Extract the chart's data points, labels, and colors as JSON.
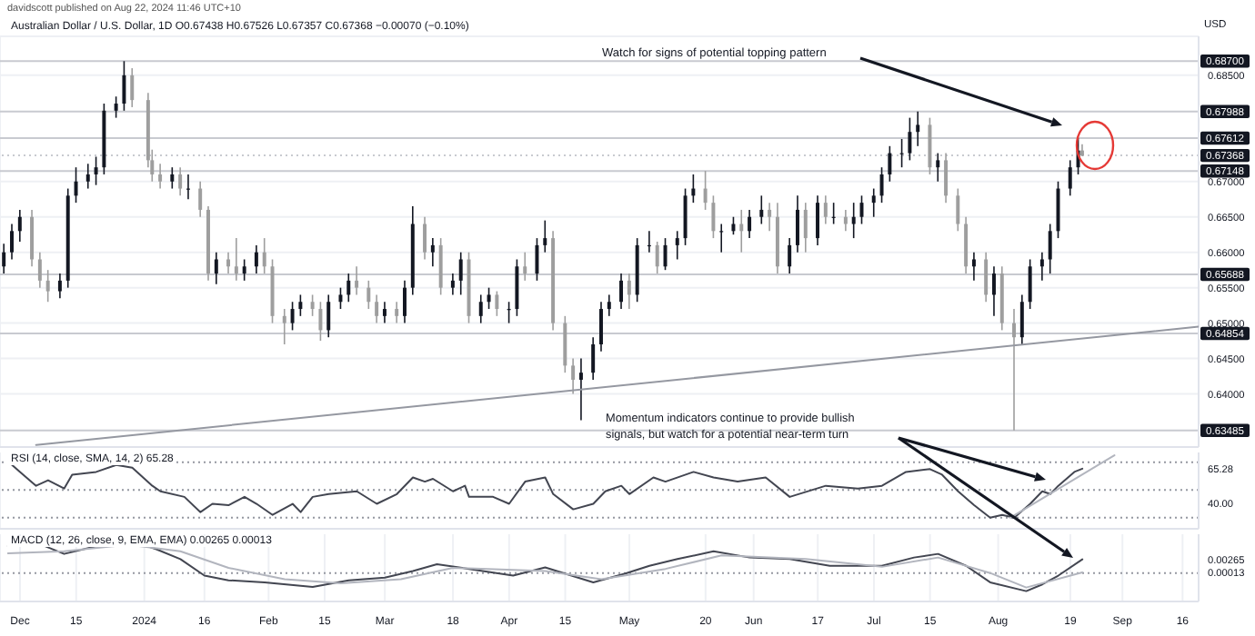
{
  "chart_data": [
    {
      "type": "candlestick",
      "title": "Australian Dollar / U.S. Dollar, 1D O0.67438 H0.67526 L0.67357 C0.67368 −0.00070 (−0.10%)",
      "ylabel": "USD",
      "annotations": [
        "davidscott published on Aug 22, 2024 11:46 UTC+10",
        "Watch for signs of potential topping pattern",
        "Momentum indicators continue to provide bullish signals, but watch for a potential near-term turn"
      ],
      "x": [
        "2023-11-27",
        "2023-11-29",
        "2023-12-01",
        "2023-12-04",
        "2023-12-06",
        "2023-12-08",
        "2023-12-11",
        "2023-12-13",
        "2023-12-15",
        "2023-12-18",
        "2023-12-20",
        "2023-12-22",
        "2023-12-25",
        "2023-12-27",
        "2023-12-29",
        "2024-01-02",
        "2024-01-03",
        "2024-01-05",
        "2024-01-08",
        "2024-01-10",
        "2024-01-12",
        "2024-01-15",
        "2024-01-17",
        "2024-01-19",
        "2024-01-22",
        "2024-01-24",
        "2024-01-26",
        "2024-01-29",
        "2024-01-31",
        "2024-02-02",
        "2024-02-05",
        "2024-02-07",
        "2024-02-09",
        "2024-02-12",
        "2024-02-14",
        "2024-02-16",
        "2024-02-19",
        "2024-02-21",
        "2024-02-23",
        "2024-02-26",
        "2024-02-28",
        "2024-03-01",
        "2024-03-04",
        "2024-03-06",
        "2024-03-08",
        "2024-03-11",
        "2024-03-13",
        "2024-03-15",
        "2024-03-18",
        "2024-03-20",
        "2024-03-22",
        "2024-03-25",
        "2024-03-27",
        "2024-03-29",
        "2024-04-01",
        "2024-04-03",
        "2024-04-05",
        "2024-04-08",
        "2024-04-10",
        "2024-04-12",
        "2024-04-15",
        "2024-04-17",
        "2024-04-19",
        "2024-04-22",
        "2024-04-24",
        "2024-04-26",
        "2024-04-29",
        "2024-05-01",
        "2024-05-03",
        "2024-05-06",
        "2024-05-08",
        "2024-05-10",
        "2024-05-13",
        "2024-05-15",
        "2024-05-17",
        "2024-05-20",
        "2024-05-22",
        "2024-05-24",
        "2024-05-27",
        "2024-05-29",
        "2024-05-31",
        "2024-06-03",
        "2024-06-05",
        "2024-06-07",
        "2024-06-10",
        "2024-06-12",
        "2024-06-14",
        "2024-06-17",
        "2024-06-19",
        "2024-06-21",
        "2024-06-24",
        "2024-06-26",
        "2024-06-28",
        "2024-07-01",
        "2024-07-03",
        "2024-07-05",
        "2024-07-08",
        "2024-07-10",
        "2024-07-12",
        "2024-07-15",
        "2024-07-17",
        "2024-07-19",
        "2024-07-22",
        "2024-07-24",
        "2024-07-26",
        "2024-07-29",
        "2024-07-31",
        "2024-08-02",
        "2024-08-05",
        "2024-08-07",
        "2024-08-09",
        "2024-08-12",
        "2024-08-14",
        "2024-08-16",
        "2024-08-19",
        "2024-08-21",
        "2024-08-22"
      ],
      "ohlc": [
        [
          0.658,
          0.6612,
          0.657,
          0.66
        ],
        [
          0.66,
          0.664,
          0.659,
          0.663
        ],
        [
          0.663,
          0.666,
          0.6615,
          0.665
        ],
        [
          0.665,
          0.666,
          0.658,
          0.659
        ],
        [
          0.659,
          0.66,
          0.655,
          0.656
        ],
        [
          0.656,
          0.6575,
          0.653,
          0.6545
        ],
        [
          0.6545,
          0.657,
          0.6535,
          0.656
        ],
        [
          0.656,
          0.669,
          0.655,
          0.668
        ],
        [
          0.668,
          0.672,
          0.667,
          0.67
        ],
        [
          0.67,
          0.6725,
          0.669,
          0.671
        ],
        [
          0.671,
          0.6735,
          0.6695,
          0.672
        ],
        [
          0.672,
          0.681,
          0.671,
          0.68
        ],
        [
          0.68,
          0.682,
          0.679,
          0.681
        ],
        [
          0.681,
          0.687,
          0.68,
          0.685
        ],
        [
          0.685,
          0.686,
          0.6805,
          0.6815
        ],
        [
          0.6815,
          0.6825,
          0.672,
          0.673
        ],
        [
          0.673,
          0.6745,
          0.67,
          0.671
        ],
        [
          0.671,
          0.6725,
          0.669,
          0.67
        ],
        [
          0.67,
          0.672,
          0.669,
          0.671
        ],
        [
          0.671,
          0.672,
          0.668,
          0.669
        ],
        [
          0.669,
          0.671,
          0.6675,
          0.669
        ],
        [
          0.669,
          0.67,
          0.665,
          0.666
        ],
        [
          0.666,
          0.6665,
          0.656,
          0.657
        ],
        [
          0.657,
          0.66,
          0.6555,
          0.659
        ],
        [
          0.659,
          0.66,
          0.657,
          0.658
        ],
        [
          0.658,
          0.662,
          0.656,
          0.657
        ],
        [
          0.657,
          0.659,
          0.656,
          0.658
        ],
        [
          0.658,
          0.661,
          0.657,
          0.66
        ],
        [
          0.66,
          0.662,
          0.657,
          0.658
        ],
        [
          0.658,
          0.659,
          0.65,
          0.651
        ],
        [
          0.651,
          0.652,
          0.647,
          0.65
        ],
        [
          0.65,
          0.653,
          0.649,
          0.652
        ],
        [
          0.652,
          0.654,
          0.651,
          0.653
        ],
        [
          0.653,
          0.654,
          0.651,
          0.652
        ],
        [
          0.652,
          0.653,
          0.6475,
          0.649
        ],
        [
          0.649,
          0.654,
          0.648,
          0.653
        ],
        [
          0.653,
          0.655,
          0.652,
          0.654
        ],
        [
          0.654,
          0.657,
          0.653,
          0.656
        ],
        [
          0.656,
          0.658,
          0.654,
          0.655
        ],
        [
          0.655,
          0.656,
          0.652,
          0.653
        ],
        [
          0.653,
          0.654,
          0.65,
          0.651
        ],
        [
          0.651,
          0.653,
          0.65,
          0.652
        ],
        [
          0.652,
          0.653,
          0.65,
          0.651
        ],
        [
          0.651,
          0.656,
          0.65,
          0.655
        ],
        [
          0.655,
          0.6665,
          0.654,
          0.664
        ],
        [
          0.664,
          0.665,
          0.659,
          0.66
        ],
        [
          0.66,
          0.662,
          0.658,
          0.661
        ],
        [
          0.661,
          0.662,
          0.654,
          0.655
        ],
        [
          0.655,
          0.657,
          0.654,
          0.656
        ],
        [
          0.656,
          0.66,
          0.654,
          0.659
        ],
        [
          0.659,
          0.66,
          0.65,
          0.651
        ],
        [
          0.651,
          0.654,
          0.65,
          0.653
        ],
        [
          0.653,
          0.655,
          0.652,
          0.654
        ],
        [
          0.654,
          0.6545,
          0.651,
          0.652
        ],
        [
          0.652,
          0.653,
          0.65,
          0.652
        ],
        [
          0.652,
          0.659,
          0.651,
          0.658
        ],
        [
          0.658,
          0.66,
          0.656,
          0.657
        ],
        [
          0.657,
          0.662,
          0.656,
          0.661
        ],
        [
          0.661,
          0.6645,
          0.66,
          0.662
        ],
        [
          0.662,
          0.663,
          0.649,
          0.65
        ],
        [
          0.65,
          0.651,
          0.643,
          0.644
        ],
        [
          0.644,
          0.645,
          0.64,
          0.642
        ],
        [
          0.642,
          0.645,
          0.6363,
          0.643
        ],
        [
          0.643,
          0.648,
          0.642,
          0.647
        ],
        [
          0.647,
          0.653,
          0.646,
          0.652
        ],
        [
          0.652,
          0.654,
          0.651,
          0.653
        ],
        [
          0.653,
          0.657,
          0.652,
          0.656
        ],
        [
          0.656,
          0.657,
          0.652,
          0.654
        ],
        [
          0.654,
          0.662,
          0.653,
          0.661
        ],
        [
          0.661,
          0.663,
          0.66,
          0.661
        ],
        [
          0.661,
          0.6615,
          0.657,
          0.658
        ],
        [
          0.658,
          0.662,
          0.6575,
          0.661
        ],
        [
          0.661,
          0.663,
          0.659,
          0.662
        ],
        [
          0.662,
          0.669,
          0.661,
          0.668
        ],
        [
          0.668,
          0.671,
          0.667,
          0.669
        ],
        [
          0.669,
          0.6715,
          0.666,
          0.667
        ],
        [
          0.667,
          0.668,
          0.662,
          0.663
        ],
        [
          0.663,
          0.664,
          0.66,
          0.663
        ],
        [
          0.663,
          0.665,
          0.6625,
          0.664
        ],
        [
          0.664,
          0.666,
          0.66,
          0.663
        ],
        [
          0.663,
          0.666,
          0.662,
          0.665
        ],
        [
          0.665,
          0.668,
          0.664,
          0.666
        ],
        [
          0.666,
          0.667,
          0.663,
          0.665
        ],
        [
          0.665,
          0.667,
          0.657,
          0.658
        ],
        [
          0.658,
          0.662,
          0.657,
          0.661
        ],
        [
          0.661,
          0.668,
          0.66,
          0.666
        ],
        [
          0.666,
          0.667,
          0.66,
          0.662
        ],
        [
          0.662,
          0.668,
          0.661,
          0.667
        ],
        [
          0.667,
          0.668,
          0.664,
          0.665
        ],
        [
          0.665,
          0.667,
          0.664,
          0.665
        ],
        [
          0.665,
          0.666,
          0.663,
          0.664
        ],
        [
          0.664,
          0.667,
          0.662,
          0.665
        ],
        [
          0.665,
          0.668,
          0.664,
          0.667
        ],
        [
          0.667,
          0.669,
          0.665,
          0.668
        ],
        [
          0.668,
          0.672,
          0.667,
          0.671
        ],
        [
          0.671,
          0.675,
          0.67,
          0.674
        ],
        [
          0.674,
          0.676,
          0.672,
          0.674
        ],
        [
          0.674,
          0.679,
          0.673,
          0.677
        ],
        [
          0.677,
          0.67988,
          0.675,
          0.678
        ],
        [
          0.678,
          0.679,
          0.671,
          0.672
        ],
        [
          0.672,
          0.674,
          0.67,
          0.673
        ],
        [
          0.673,
          0.674,
          0.667,
          0.668
        ],
        [
          0.668,
          0.669,
          0.663,
          0.664
        ],
        [
          0.664,
          0.665,
          0.657,
          0.658
        ],
        [
          0.658,
          0.66,
          0.656,
          0.659
        ],
        [
          0.659,
          0.66,
          0.653,
          0.654
        ],
        [
          0.654,
          0.658,
          0.651,
          0.657
        ],
        [
          0.657,
          0.658,
          0.649,
          0.65
        ],
        [
          0.65,
          0.652,
          0.63485,
          0.648
        ],
        [
          0.648,
          0.654,
          0.647,
          0.653
        ],
        [
          0.653,
          0.659,
          0.652,
          0.658
        ],
        [
          0.658,
          0.66,
          0.656,
          0.659
        ],
        [
          0.659,
          0.664,
          0.657,
          0.663
        ],
        [
          0.663,
          0.67,
          0.662,
          0.669
        ],
        [
          0.669,
          0.673,
          0.668,
          0.672
        ],
        [
          0.672,
          0.67612,
          0.671,
          0.67438
        ],
        [
          0.67438,
          0.67526,
          0.67357,
          0.67368
        ]
      ],
      "colors": [
        "#131722",
        "#131722",
        "#131722",
        "#9e9e9e",
        "#9e9e9e",
        "#9e9e9e",
        "#131722",
        "#131722",
        "#131722",
        "#131722",
        "#131722",
        "#131722",
        "#131722",
        "#131722",
        "#9e9e9e",
        "#9e9e9e",
        "#9e9e9e",
        "#9e9e9e",
        "#131722",
        "#9e9e9e",
        "#131722",
        "#9e9e9e",
        "#9e9e9e",
        "#131722",
        "#9e9e9e",
        "#9e9e9e",
        "#131722",
        "#131722",
        "#9e9e9e",
        "#9e9e9e",
        "#9e9e9e",
        "#131722",
        "#131722",
        "#9e9e9e",
        "#9e9e9e",
        "#131722",
        "#131722",
        "#131722",
        "#9e9e9e",
        "#9e9e9e",
        "#9e9e9e",
        "#131722",
        "#9e9e9e",
        "#131722",
        "#131722",
        "#9e9e9e",
        "#131722",
        "#9e9e9e",
        "#131722",
        "#131722",
        "#9e9e9e",
        "#131722",
        "#131722",
        "#9e9e9e",
        "#131722",
        "#131722",
        "#9e9e9e",
        "#131722",
        "#131722",
        "#9e9e9e",
        "#9e9e9e",
        "#9e9e9e",
        "#131722",
        "#131722",
        "#131722",
        "#131722",
        "#131722",
        "#9e9e9e",
        "#131722",
        "#131722",
        "#9e9e9e",
        "#131722",
        "#131722",
        "#131722",
        "#131722",
        "#9e9e9e",
        "#9e9e9e",
        "#131722",
        "#131722",
        "#9e9e9e",
        "#131722",
        "#131722",
        "#9e9e9e",
        "#9e9e9e",
        "#131722",
        "#131722",
        "#9e9e9e",
        "#131722",
        "#9e9e9e",
        "#131722",
        "#9e9e9e",
        "#131722",
        "#131722",
        "#131722",
        "#131722",
        "#131722",
        "#131722",
        "#131722",
        "#131722",
        "#9e9e9e",
        "#131722",
        "#9e9e9e",
        "#9e9e9e",
        "#9e9e9e",
        "#131722",
        "#9e9e9e",
        "#131722",
        "#9e9e9e",
        "#9e9e9e",
        "#131722",
        "#131722",
        "#131722",
        "#131722",
        "#131722",
        "#131722",
        "#131722",
        "#9e9e9e"
      ],
      "series": [
        {
          "type": "line",
          "color": "#9598a1",
          "x": [
            "2023-12-05",
            "2024-09-20"
          ],
          "values": [
            0.6328,
            0.6495
          ]
        }
      ],
      "xlim": [
        "2023-11-26",
        "2024-09-20"
      ],
      "xticks": [
        {
          "value": "2023-12-01",
          "label": null
        },
        {
          "value": "2023-12-15",
          "label": null
        },
        {
          "value": "2024-01-01",
          "label": null
        },
        {
          "value": "2024-01-16",
          "label": null
        },
        {
          "value": "2024-02-01",
          "label": null
        },
        {
          "value": "2024-02-15",
          "label": null
        },
        {
          "value": "2024-03-01",
          "label": null
        },
        {
          "value": "2024-03-18",
          "label": null
        },
        {
          "value": "2024-04-01",
          "label": null
        },
        {
          "value": "2024-04-15",
          "label": null
        },
        {
          "value": "2024-05-01",
          "label": null
        },
        {
          "value": "2024-05-20",
          "label": null
        },
        {
          "value": "2024-06-01",
          "label": null
        },
        {
          "value": "2024-06-17",
          "label": null
        },
        {
          "value": "2024-07-01",
          "label": null
        },
        {
          "value": "2024-07-15",
          "label": null
        },
        {
          "value": "2024-08-01",
          "label": null
        },
        {
          "value": "2024-08-19",
          "label": null
        },
        {
          "value": "2024-09-01",
          "label": null
        },
        {
          "value": "2024-09-16",
          "label": null
        }
      ],
      "ylim": [
        0.6325,
        0.6905
      ],
      "yticks": [
        {
          "value": 0.685,
          "label": "0.68500"
        },
        {
          "value": 0.67,
          "label": "0.67000"
        },
        {
          "value": 0.665,
          "label": "0.66500"
        },
        {
          "value": 0.66,
          "label": "0.66000"
        },
        {
          "value": 0.655,
          "label": "0.65500"
        },
        {
          "value": 0.65,
          "label": "0.65000"
        },
        {
          "value": 0.645,
          "label": "0.64500"
        },
        {
          "value": 0.64,
          "label": "0.64000"
        }
      ],
      "ref_lines": [
        {
          "axis": "y",
          "value": 0.687,
          "label": "0.68700",
          "color": "#c8cad0"
        },
        {
          "axis": "y",
          "value": 0.67988,
          "label": "0.67988",
          "color": "#c8cad0"
        },
        {
          "axis": "y",
          "value": 0.67612,
          "label": "0.67612",
          "color": "#c8cad0"
        },
        {
          "axis": "y",
          "value": 0.67368,
          "label": "0.67368",
          "color": "#c8cad0",
          "line_style": "dotted"
        },
        {
          "axis": "y",
          "value": 0.67148,
          "label": "0.67148",
          "color": "#c8cad0"
        },
        {
          "axis": "y",
          "value": 0.65688,
          "label": "0.65688",
          "color": "#c8cad0"
        },
        {
          "axis": "y",
          "value": 0.64854,
          "label": "0.64854",
          "color": "#c8cad0"
        },
        {
          "axis": "y",
          "value": 0.63485,
          "label": "0.63485",
          "color": "#c8cad0"
        }
      ],
      "grid": true,
      "tick_labels": "y"
    },
    {
      "type": "line",
      "title": "RSI (14, close, SMA, 14, 2) 65.28",
      "series": [
        {
          "color": "#434651",
          "x": [
            "2023-11-29",
            "2023-12-01",
            "2023-12-05",
            "2023-12-08",
            "2023-12-12",
            "2023-12-14",
            "2023-12-20",
            "2023-12-25",
            "2023-12-29",
            "2024-01-03",
            "2024-01-05",
            "2024-01-11",
            "2024-01-15",
            "2024-01-18",
            "2024-01-22",
            "2024-01-26",
            "2024-01-29",
            "2024-02-02",
            "2024-02-07",
            "2024-02-09",
            "2024-02-12",
            "2024-02-16",
            "2024-02-23",
            "2024-02-28",
            "2024-03-04",
            "2024-03-08",
            "2024-03-11",
            "2024-03-13",
            "2024-03-18",
            "2024-03-21",
            "2024-03-22",
            "2024-03-28",
            "2024-04-01",
            "2024-04-05",
            "2024-04-10",
            "2024-04-12",
            "2024-04-17",
            "2024-04-22",
            "2024-04-25",
            "2024-04-29",
            "2024-05-01",
            "2024-05-07",
            "2024-05-10",
            "2024-05-17",
            "2024-05-22",
            "2024-05-28",
            "2024-06-04",
            "2024-06-10",
            "2024-06-19",
            "2024-06-27",
            "2024-07-03",
            "2024-07-09",
            "2024-07-15",
            "2024-07-18",
            "2024-07-22",
            "2024-07-26",
            "2024-07-30",
            "2024-08-02",
            "2024-08-05",
            "2024-08-09",
            "2024-08-12",
            "2024-08-14",
            "2024-08-16",
            "2024-08-20",
            "2024-08-22"
          ],
          "values": [
            68,
            63,
            53,
            57,
            51,
            61,
            63,
            68,
            66,
            53,
            49,
            45,
            34,
            40,
            39,
            45,
            40,
            32,
            40,
            34,
            45,
            47,
            49,
            40,
            47,
            59,
            56,
            58,
            49,
            53,
            45,
            45,
            40,
            56,
            59,
            47,
            36,
            40,
            49,
            53,
            47,
            59,
            56,
            63,
            59,
            56,
            59,
            45,
            53,
            51,
            53,
            63,
            65,
            61,
            49,
            39,
            30,
            32,
            30,
            40,
            49,
            47,
            53,
            63,
            65.28
          ]
        },
        {
          "color": "#b2b5be",
          "x": [
            "2024-08-04",
            "2024-08-30"
          ],
          "values": [
            30,
            75
          ]
        }
      ],
      "xlim": [
        "2023-11-26",
        "2024-09-20"
      ],
      "xticks": [
        {
          "value": "2023-12-01",
          "label": null
        },
        {
          "value": "2023-12-15",
          "label": null
        },
        {
          "value": "2024-01-01",
          "label": null
        },
        {
          "value": "2024-01-16",
          "label": null
        },
        {
          "value": "2024-02-01",
          "label": null
        },
        {
          "value": "2024-02-15",
          "label": null
        },
        {
          "value": "2024-03-01",
          "label": null
        },
        {
          "value": "2024-03-18",
          "label": null
        },
        {
          "value": "2024-04-01",
          "label": null
        },
        {
          "value": "2024-04-15",
          "label": null
        },
        {
          "value": "2024-05-01",
          "label": null
        },
        {
          "value": "2024-05-20",
          "label": null
        },
        {
          "value": "2024-06-01",
          "label": null
        },
        {
          "value": "2024-06-17",
          "label": null
        },
        {
          "value": "2024-07-01",
          "label": null
        },
        {
          "value": "2024-07-15",
          "label": null
        },
        {
          "value": "2024-08-01",
          "label": null
        },
        {
          "value": "2024-08-19",
          "label": null
        },
        {
          "value": "2024-09-01",
          "label": null
        },
        {
          "value": "2024-09-16",
          "label": null
        }
      ],
      "ylim": [
        22,
        77
      ],
      "yticks": [
        {
          "value": 65.28,
          "label": "65.28"
        },
        {
          "value": 40,
          "label": "40.00"
        }
      ],
      "ref_lines": [
        {
          "axis": "y",
          "value": 70,
          "color": "#9598a1",
          "line_style": "dotted"
        },
        {
          "axis": "y",
          "value": 50,
          "color": "#9598a1",
          "line_style": "dotted"
        },
        {
          "axis": "y",
          "value": 30,
          "color": "#9598a1",
          "line_style": "dotted"
        }
      ],
      "grid": "x",
      "tick_labels": "y"
    },
    {
      "type": "line",
      "title": "MACD (12, 26, close, 9, EMA, EMA) 0.00265 0.00013",
      "series": [
        {
          "color": "#434651",
          "x": [
            "2023-11-28",
            "2023-12-05",
            "2023-12-12",
            "2023-12-19",
            "2023-12-28",
            "2024-01-04",
            "2024-01-10",
            "2024-01-16",
            "2024-01-22",
            "2024-01-31",
            "2024-02-12",
            "2024-02-21",
            "2024-03-01",
            "2024-03-08",
            "2024-03-14",
            "2024-03-22",
            "2024-04-02",
            "2024-04-10",
            "2024-04-22",
            "2024-04-30",
            "2024-05-06",
            "2024-05-13",
            "2024-05-22",
            "2024-05-31",
            "2024-06-10",
            "2024-06-20",
            "2024-07-03",
            "2024-07-11",
            "2024-07-17",
            "2024-07-24",
            "2024-07-30",
            "2024-08-08",
            "2024-08-12",
            "2024-08-16",
            "2024-08-22"
          ],
          "values": [
            0.0052,
            0.0059,
            0.0037,
            0.005,
            0.0065,
            0.0046,
            0.0027,
            -0.0005,
            -0.0014,
            -0.0018,
            -0.0027,
            -0.0014,
            -0.0009,
            0.0004,
            0.0017,
            0.0008,
            -0.0005,
            0.0011,
            -0.0018,
            -0.0001,
            0.0014,
            0.0027,
            0.0042,
            0.003,
            0.0027,
            0.0014,
            0.0014,
            0.003,
            0.0037,
            0.0014,
            -0.0018,
            -0.0035,
            -0.0022,
            -0.0005,
            0.00265
          ]
        },
        {
          "color": "#b2b5be",
          "x": [
            "2023-11-28",
            "2023-12-12",
            "2023-12-28",
            "2024-01-10",
            "2024-01-22",
            "2024-02-05",
            "2024-02-19",
            "2024-03-05",
            "2024-03-18",
            "2024-04-10",
            "2024-04-24",
            "2024-05-10",
            "2024-05-24",
            "2024-06-14",
            "2024-07-03",
            "2024-07-17",
            "2024-07-30",
            "2024-08-08",
            "2024-08-22"
          ],
          "values": [
            0.0038,
            0.0042,
            0.0055,
            0.0042,
            0.001,
            -0.0012,
            -0.002,
            -0.0012,
            0.001,
            0.0004,
            -0.0012,
            0.0008,
            0.0034,
            0.0027,
            0.0012,
            0.003,
            0.0,
            -0.0028,
            0.00013
          ]
        }
      ],
      "xlim": [
        "2023-11-26",
        "2024-09-20"
      ],
      "xticks": [
        {
          "value": "2023-12-01",
          "label": "Dec"
        },
        {
          "value": "2023-12-15",
          "label": "15"
        },
        {
          "value": "2024-01-01",
          "label": "2024"
        },
        {
          "value": "2024-01-16",
          "label": "16"
        },
        {
          "value": "2024-02-01",
          "label": "Feb"
        },
        {
          "value": "2024-02-15",
          "label": "15"
        },
        {
          "value": "2024-03-01",
          "label": "Mar"
        },
        {
          "value": "2024-03-18",
          "label": "18"
        },
        {
          "value": "2024-04-01",
          "label": "Apr"
        },
        {
          "value": "2024-04-15",
          "label": "15"
        },
        {
          "value": "2024-05-01",
          "label": "May"
        },
        {
          "value": "2024-05-20",
          "label": "20"
        },
        {
          "value": "2024-06-01",
          "label": "Jun"
        },
        {
          "value": "2024-06-17",
          "label": "17"
        },
        {
          "value": "2024-07-01",
          "label": "Jul"
        },
        {
          "value": "2024-07-15",
          "label": "15"
        },
        {
          "value": "2024-08-01",
          "label": "Aug"
        },
        {
          "value": "2024-08-19",
          "label": "19"
        },
        {
          "value": "2024-09-01",
          "label": "Sep"
        },
        {
          "value": "2024-09-16",
          "label": "16"
        }
      ],
      "ylim": [
        -0.0055,
        0.0075
      ],
      "yticks": [
        {
          "value": 0.00265,
          "label": "0.00265"
        },
        {
          "value": 0.00013,
          "label": "0.00013"
        }
      ],
      "ref_lines": [
        {
          "axis": "y",
          "value": 0,
          "color": "#9598a1",
          "line_style": "dotted"
        }
      ],
      "grid": "x"
    }
  ]
}
